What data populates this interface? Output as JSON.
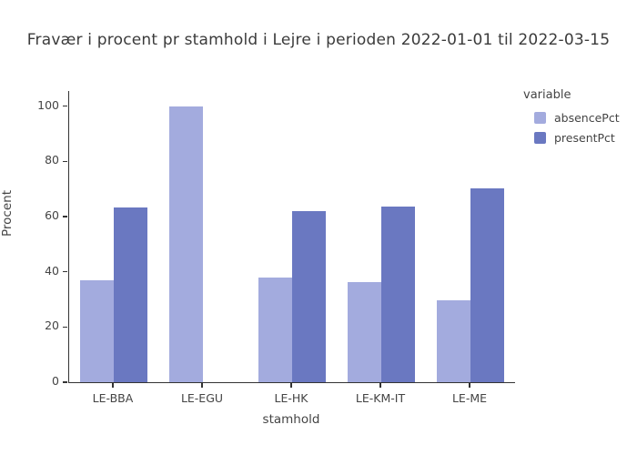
{
  "title": "Fravær i procent pr stamhold i Lejre i perioden 2022-01-01 til 2022-03-15",
  "colors": {
    "absence": "#a3abde",
    "present": "#6a78c1",
    "axis": "#333333",
    "text": "#444444"
  },
  "chart_data": {
    "type": "bar",
    "title": "Fravær i procent pr stamhold i Lejre i perioden 2022-01-01 til 2022-03-15",
    "categories": [
      "LE-BBA",
      "LE-EGU",
      "LE-HK",
      "LE-KM-IT",
      "LE-ME"
    ],
    "series": [
      {
        "name": "absencePct",
        "color": "#a3abde",
        "values": [
          36.8,
          100,
          37.9,
          36.4,
          29.7
        ]
      },
      {
        "name": "presentPct",
        "color": "#6a78c1",
        "values": [
          63.2,
          0,
          62.1,
          63.6,
          70.3
        ]
      }
    ],
    "xlabel": "stamhold",
    "ylabel": "Procent",
    "ylim": [
      0,
      100
    ],
    "yticks": [
      0,
      20,
      40,
      60,
      80,
      100
    ],
    "legend_title": "variable",
    "legend_position": "right",
    "grid": false
  }
}
